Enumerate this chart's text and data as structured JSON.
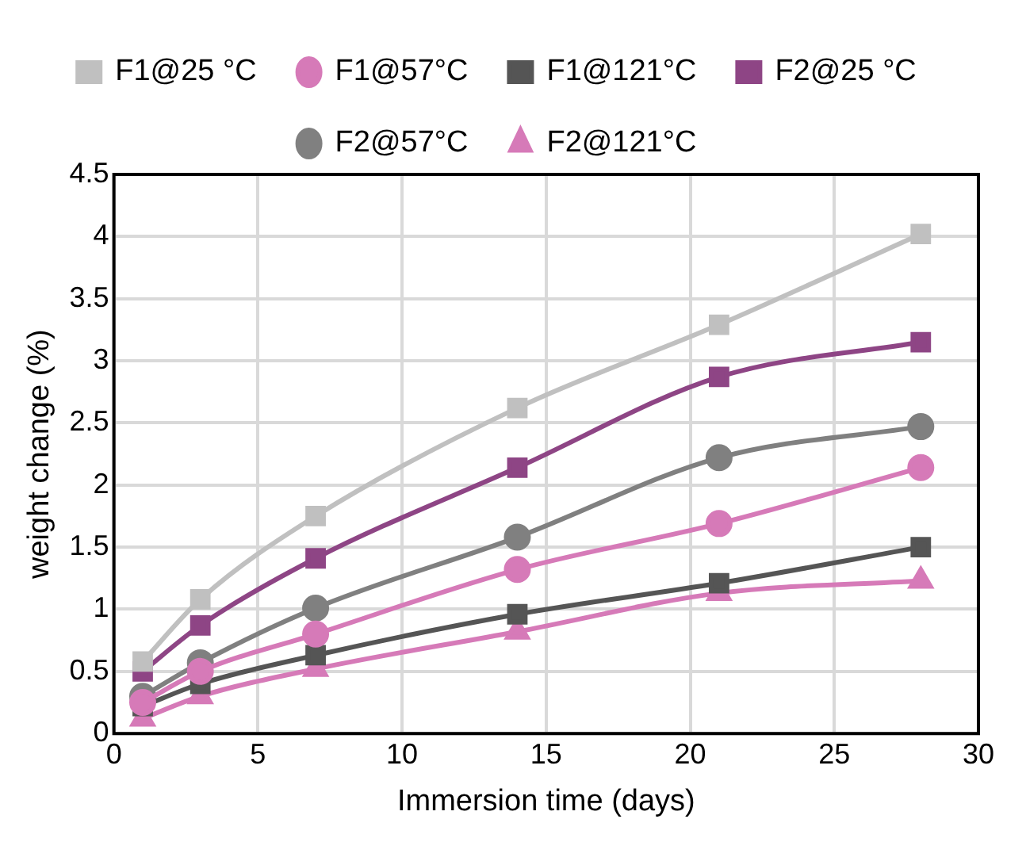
{
  "chart_data": {
    "type": "line",
    "xlabel": "Immersion time (days)",
    "ylabel": "weight change (%)",
    "x": [
      1,
      3,
      7,
      14,
      21,
      28
    ],
    "xlim": [
      0,
      30
    ],
    "xticks": [
      0,
      5,
      10,
      15,
      20,
      25,
      30
    ],
    "ylim": [
      0,
      4.5
    ],
    "yticks": [
      0,
      0.5,
      1,
      1.5,
      2,
      2.5,
      3,
      3.5,
      4,
      4.5
    ],
    "grid": true,
    "legend": "top",
    "line_style": "solid",
    "series": [
      {
        "name": "F1@25 °C",
        "color": "#c0c0c0",
        "marker": "square",
        "values": [
          0.58,
          1.08,
          1.75,
          2.62,
          3.29,
          4.02
        ]
      },
      {
        "name": "F1@57°C",
        "color": "#d67ab8",
        "marker": "circle",
        "values": [
          0.25,
          0.5,
          0.8,
          1.32,
          1.69,
          2.14
        ]
      },
      {
        "name": "F1@121°C",
        "color": "#555555",
        "marker": "square",
        "values": [
          0.22,
          0.4,
          0.63,
          0.96,
          1.21,
          1.5
        ]
      },
      {
        "name": "F2@25 °C",
        "color": "#8e4585",
        "marker": "square",
        "values": [
          0.5,
          0.87,
          1.41,
          2.14,
          2.87,
          3.15
        ]
      },
      {
        "name": "F2@57°C",
        "color": "#808080",
        "marker": "circle",
        "values": [
          0.3,
          0.57,
          1.01,
          1.58,
          2.22,
          2.47
        ]
      },
      {
        "name": "F2@121°C",
        "color": "#d67ab8",
        "marker": "triangle",
        "values": [
          0.12,
          0.3,
          0.52,
          0.82,
          1.13,
          1.23
        ]
      }
    ]
  }
}
